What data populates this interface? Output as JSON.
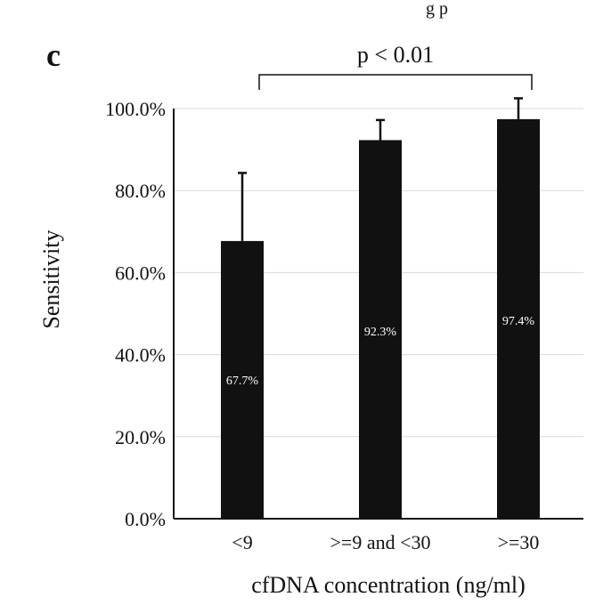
{
  "panel_letter": "c",
  "top_partial_text": "g  p",
  "chart_data": {
    "type": "bar",
    "categories": [
      "<9",
      ">=9 and <30",
      ">=30"
    ],
    "values": [
      67.7,
      92.3,
      97.4
    ],
    "value_labels": [
      "67.7%",
      "92.3%",
      "97.4%"
    ],
    "error_upper": [
      84.3,
      97.2,
      102.5
    ],
    "xlabel": "cfDNA concentration (ng/ml)",
    "ylabel": "Sensitivity",
    "ylim": [
      0,
      100
    ],
    "yticks": [
      0,
      20,
      40,
      60,
      80,
      100
    ],
    "ytick_labels": [
      "0.0%",
      "20.0%",
      "40.0%",
      "60.0%",
      "80.0%",
      "100.0%"
    ],
    "grid": true,
    "bar_color": "#111111",
    "grid_color": "#d9d9d9",
    "significance": {
      "label": "p < 0.01",
      "from_category": 0,
      "to_category": 2
    }
  }
}
